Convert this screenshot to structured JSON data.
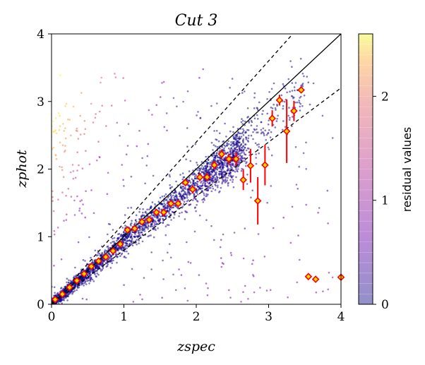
{
  "chart_data": {
    "type": "scatter",
    "title": "Cut 3",
    "xlabel": "zspec",
    "ylabel": "zphot",
    "xlim": [
      0,
      4
    ],
    "ylim": [
      0,
      4
    ],
    "xticks": [
      "0",
      "1",
      "2",
      "3",
      "4"
    ],
    "yticks": [
      "0",
      "1",
      "2",
      "3",
      "4"
    ],
    "reference_lines": [
      {
        "name": "one-to-one",
        "slope": 1.0,
        "style": "solid"
      },
      {
        "name": "upper-bound",
        "slope": 1.2,
        "style": "dashed"
      },
      {
        "name": "lower-bound",
        "slope": 0.8,
        "style": "dashed"
      }
    ],
    "colorbar": {
      "label": "residual values",
      "range": [
        0,
        2.6
      ],
      "ticks": [
        "0",
        "1",
        "2"
      ],
      "colormap": "plasma"
    },
    "binned_medians": {
      "name": "median zphot per zspec bin",
      "color": "#ff0000",
      "points": [
        {
          "x": 0.05,
          "y": 0.07,
          "err": 0.02
        },
        {
          "x": 0.15,
          "y": 0.15,
          "err": 0.02
        },
        {
          "x": 0.25,
          "y": 0.25,
          "err": 0.02
        },
        {
          "x": 0.35,
          "y": 0.35,
          "err": 0.02
        },
        {
          "x": 0.45,
          "y": 0.45,
          "err": 0.02
        },
        {
          "x": 0.55,
          "y": 0.56,
          "err": 0.02
        },
        {
          "x": 0.65,
          "y": 0.64,
          "err": 0.02
        },
        {
          "x": 0.75,
          "y": 0.7,
          "err": 0.03
        },
        {
          "x": 0.85,
          "y": 0.79,
          "err": 0.03
        },
        {
          "x": 0.95,
          "y": 0.89,
          "err": 0.03
        },
        {
          "x": 1.05,
          "y": 1.1,
          "err": 0.04
        },
        {
          "x": 1.15,
          "y": 1.12,
          "err": 0.04
        },
        {
          "x": 1.25,
          "y": 1.22,
          "err": 0.04
        },
        {
          "x": 1.35,
          "y": 1.25,
          "err": 0.04
        },
        {
          "x": 1.45,
          "y": 1.36,
          "err": 0.05
        },
        {
          "x": 1.55,
          "y": 1.36,
          "err": 0.05
        },
        {
          "x": 1.65,
          "y": 1.49,
          "err": 0.05
        },
        {
          "x": 1.75,
          "y": 1.49,
          "err": 0.05
        },
        {
          "x": 1.85,
          "y": 1.8,
          "err": 0.05
        },
        {
          "x": 1.95,
          "y": 1.7,
          "err": 0.06
        },
        {
          "x": 2.05,
          "y": 1.88,
          "err": 0.06
        },
        {
          "x": 2.15,
          "y": 1.88,
          "err": 0.06
        },
        {
          "x": 2.25,
          "y": 2.06,
          "err": 0.06
        },
        {
          "x": 2.35,
          "y": 2.22,
          "err": 0.07
        },
        {
          "x": 2.45,
          "y": 2.15,
          "err": 0.08
        },
        {
          "x": 2.55,
          "y": 2.15,
          "err": 0.1
        },
        {
          "x": 2.65,
          "y": 1.84,
          "err": 0.15
        },
        {
          "x": 2.75,
          "y": 2.05,
          "err": 0.25
        },
        {
          "x": 2.85,
          "y": 1.53,
          "err": 0.35
        },
        {
          "x": 2.95,
          "y": 2.06,
          "err": 0.3
        },
        {
          "x": 3.05,
          "y": 2.75,
          "err": 0.12
        },
        {
          "x": 3.15,
          "y": 3.02,
          "err": 0.08
        },
        {
          "x": 3.25,
          "y": 2.56,
          "err": 0.47
        },
        {
          "x": 3.35,
          "y": 2.86,
          "err": 0.15
        },
        {
          "x": 3.45,
          "y": 3.17,
          "err": 0.0
        },
        {
          "x": 3.55,
          "y": 0.41,
          "err": 0.0
        },
        {
          "x": 3.65,
          "y": 0.37,
          "err": 0.0
        },
        {
          "x": 4.0,
          "y": 0.4,
          "err": 0.0
        }
      ]
    },
    "scatter_description": "Dense cloud of several thousand galaxies concentrated along the one-to-one line, colored by residual value; scattered outliers across the plane."
  }
}
